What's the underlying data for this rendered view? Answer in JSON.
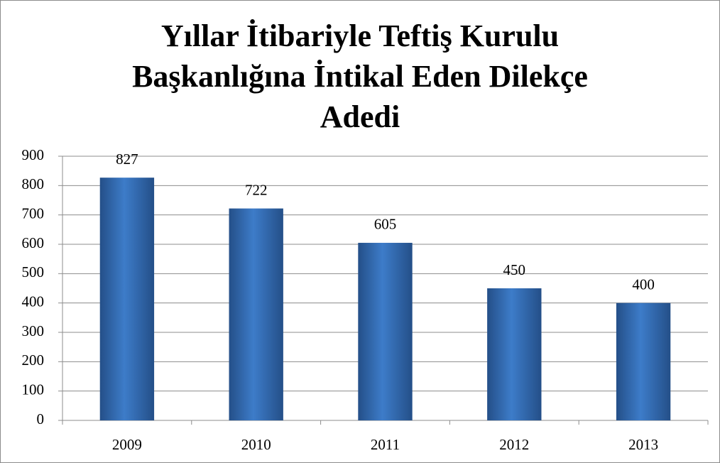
{
  "chart_data": {
    "type": "bar",
    "title": "Yıllar İtibariyle Teftiş Kurulu Başkanlığına İntikal Eden Dilekçe Adedi",
    "categories": [
      "2009",
      "2010",
      "2011",
      "2012",
      "2013"
    ],
    "values": [
      827,
      722,
      605,
      450,
      400
    ],
    "color": "#3d7cc9",
    "ylim": [
      0,
      900
    ],
    "yticks": [
      0,
      100,
      200,
      300,
      400,
      500,
      600,
      700,
      800,
      900
    ],
    "grid": true
  }
}
